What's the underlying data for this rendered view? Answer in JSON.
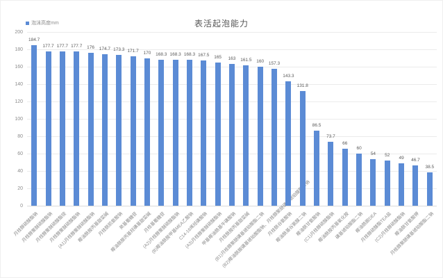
{
  "chart_data": {
    "type": "bar",
    "title": "表活起泡能力",
    "legend": "泡沫高度mm",
    "bar_color": "#5b8bd5",
    "ylim": [
      0,
      200
    ],
    "ytick_step": 20,
    "grid": true,
    "legend_position": "top-left",
    "categories": [
      "月桂醇硫酸酯钠",
      "月桂醇聚醚硫酸酯钠",
      "月桂醇聚醚硫酸酯铵",
      "月桂醇聚醚硫酸酯钠",
      "(A1)月桂醇聚醚硫酸酯钠",
      "椰油酰胺丙基甜菜碱",
      "月桂酰肌氨酸钠",
      "癸基葡糖苷",
      "椰油酰胺丙基羟磺基甜菜碱",
      "月桂基葡糖苷",
      "(A2)月桂醇聚醚硫酸酯钠",
      "(B)椰油酰胺甲基MEA乙酸钠",
      "C14-16烯烃磺酸钠",
      "(A3)月桂醇聚醚硫酸酯钠",
      "甲基椰油酰基牛磺酸钠",
      "月桂酰胺丙基甜菜碱",
      "(B1)月桂醇聚醚磺基琥珀酸酯二钠",
      "(B2)椰油酰胺磺基琥珀酸酯钠、月桂醇聚醚磺基琥珀酸酯二钠",
      "月桂酰谷氨酸钠",
      "椰油酰基谷氨酸二钠",
      "椰油酰甘氨酸钠",
      "(C1)月桂醇硫酸酯钠",
      "椰油酰胺丙基氧化胺",
      "磺基琥珀酸酯二钠",
      "椰油酰胺DEA",
      "月桂醇硫酸酯TEA盐",
      "(C2)月桂醇硫酸酯钠",
      "椰油酰甘氨酸钾",
      "月桂醇聚醚磺基琥珀酸酯二钠"
    ],
    "values": [
      184.7,
      177.7,
      177.7,
      177.7,
      176,
      174.7,
      173.3,
      171.7,
      170,
      168.3,
      168.3,
      168.3,
      167.5,
      165,
      163,
      161.5,
      160,
      157.3,
      143.3,
      131.8,
      86.5,
      73.7,
      66,
      60,
      54,
      52,
      49,
      46.7,
      38.5
    ]
  }
}
